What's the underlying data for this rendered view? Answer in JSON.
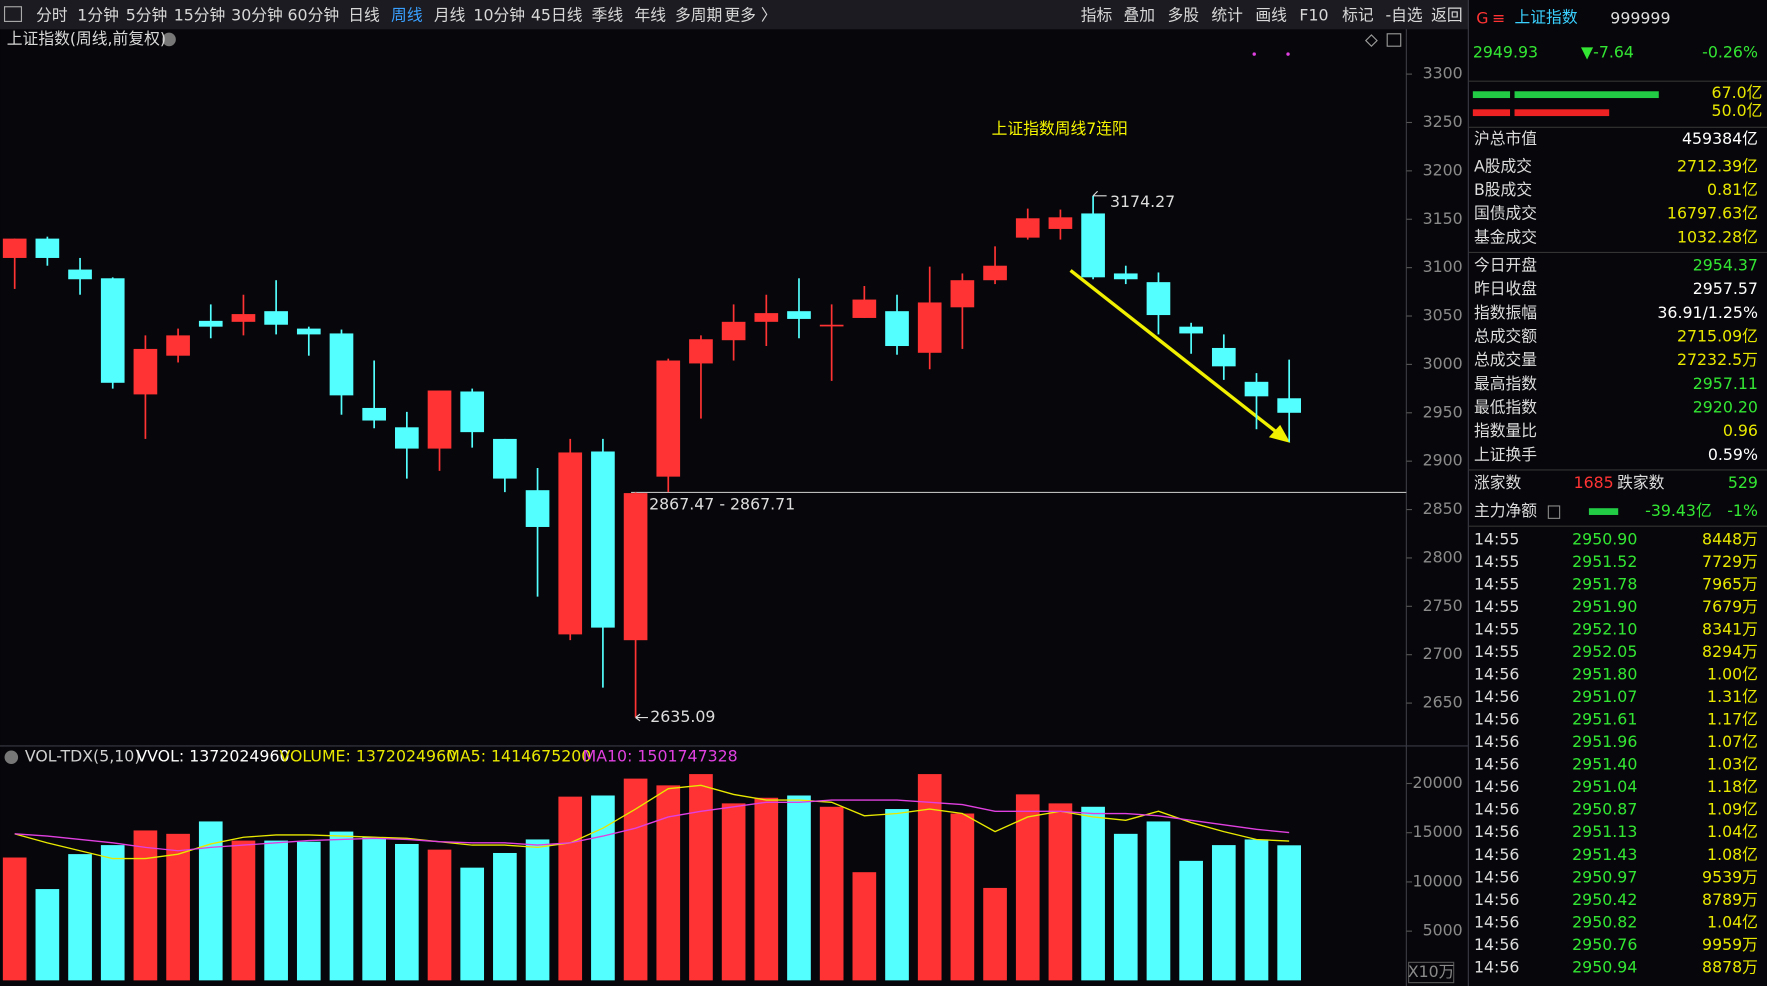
{
  "toolbar": {
    "left": [
      "分时",
      "1分钟",
      "5分钟",
      "15分钟",
      "30分钟",
      "60分钟",
      "日线",
      "周线",
      "月线",
      "10分钟",
      "45日线",
      "季线",
      "年线",
      "多周期",
      "更多 〉"
    ],
    "active": 7,
    "right": [
      "指标",
      "叠加",
      "多股",
      "统计",
      "画线",
      "F10",
      "标记",
      "-自选",
      "返回"
    ]
  },
  "chart_data": [
    {
      "type": "candlestick",
      "title": "上证指数(周线,前复权)",
      "annotation": "上证指数周线7连阳",
      "range_label": "2867.47 - 2867.71",
      "hline": 2867.71,
      "high_label_index": 33,
      "low_label_index": 19,
      "up_color": "#ff3333",
      "down_color": "#54ffff",
      "ylim": [
        2608,
        3330
      ],
      "yticks": [
        2650,
        2700,
        2750,
        2800,
        2850,
        2900,
        2950,
        3000,
        3050,
        3100,
        3150,
        3200,
        3250,
        3300
      ],
      "open": [
        3110,
        3130,
        3098,
        3089,
        2969,
        3009,
        3045,
        3044,
        3055,
        3037,
        3032,
        2955,
        2935,
        2913,
        2972,
        2923,
        2870,
        2721,
        2910,
        2715,
        2884,
        3001,
        3025,
        3044,
        3055,
        3040,
        3048,
        3055,
        3012,
        3059,
        3087,
        3131,
        3140,
        3156,
        3094,
        3085,
        3039,
        3017,
        2982,
        2965
      ],
      "high": [
        3130,
        3132,
        3110,
        3090,
        3030,
        3037,
        3062,
        3072,
        3087,
        3039,
        3036,
        3004,
        2951,
        2973,
        2975,
        2923,
        2893,
        2923,
        2923,
        2867.71,
        3006,
        3030,
        3062,
        3072,
        3089,
        3062,
        3081,
        3072,
        3101,
        3094,
        3122,
        3161,
        3160,
        3174.27,
        3102,
        3095,
        3043,
        3031,
        2991,
        3005
      ],
      "low": [
        3078,
        3102,
        3072,
        2975,
        2923,
        3002,
        3027,
        3030,
        3031,
        3009,
        2948,
        2934,
        2882,
        2890,
        2914,
        2868,
        2760,
        2715,
        2666,
        2635.09,
        2868,
        2944,
        3004,
        3019,
        3027,
        2983,
        3048,
        3010,
        2995,
        3016,
        3083,
        3129,
        3129,
        3088,
        3083,
        3031,
        3011,
        2984,
        2933,
        2920
      ],
      "close": [
        3130,
        3110,
        3088,
        2981,
        3016,
        3030,
        3039,
        3052,
        3041,
        3031,
        2968,
        2942,
        2913,
        2973,
        2930,
        2882,
        2832,
        2909,
        2728,
        2867,
        3004,
        3026,
        3044,
        3053,
        3047,
        3041,
        3067,
        3019,
        3064,
        3087,
        3102,
        3151,
        3152,
        3090,
        3088,
        3051,
        3032,
        2998,
        2967,
        2950
      ]
    },
    {
      "type": "bar",
      "header": [
        {
          "text": "VOL-TDX(5,10)",
          "color": "#d0d0d0"
        },
        {
          "text": "VVOL: 1372024960",
          "color": "#ffffff"
        },
        {
          "text": "VOLUME: 1372024960",
          "color": "#e8e800"
        },
        {
          "text": "MA5: 1414675200",
          "color": "#e8e800"
        },
        {
          "text": "MA10: 1501747328",
          "color": "#e040e0"
        }
      ],
      "unit_label": "X10万",
      "ylim": [
        0,
        21750
      ],
      "yticks": [
        5000,
        10000,
        15000,
        20000
      ],
      "series": [
        {
          "values": [
            12480,
            9275,
            12825,
            13740,
            15230,
            14885,
            16145,
            14200,
            14200,
            14085,
            15115,
            14540,
            13855,
            13280,
            11450,
            12940,
            14315,
            18665,
            18780,
            20495,
            19810,
            20955,
            17980,
            18550,
            18780,
            17635,
            10990,
            17405,
            20955,
            16950,
            9390,
            18895,
            17980,
            17635,
            14885,
            16145,
            12140,
            13740,
            14315,
            13720
          ]
        },
        {
          "color": "#e8e800",
          "values": [
            14885,
            13970,
            13170,
            12370,
            12370,
            12820,
            13860,
            14540,
            14770,
            14770,
            14660,
            14540,
            14430,
            14080,
            13740,
            13740,
            13510,
            13970,
            15460,
            17400,
            19470,
            19810,
            18890,
            18320,
            18320,
            18090,
            16720,
            16950,
            17400,
            16950,
            15110,
            16600,
            17180,
            16600,
            16260,
            17180,
            16030,
            15110,
            14310,
            14147
          ]
        },
        {
          "color": "#e040e0",
          "values": [
            14885,
            14656,
            14313,
            13969,
            13511,
            13168,
            13511,
            13740,
            13969,
            14198,
            14313,
            14427,
            14313,
            14084,
            13969,
            13969,
            13740,
            13969,
            14656,
            15458,
            16603,
            17175,
            17633,
            18091,
            18091,
            18320,
            18320,
            18320,
            18091,
            17862,
            17175,
            17175,
            17175,
            16946,
            16946,
            16717,
            16259,
            15801,
            15343,
            15017
          ]
        }
      ]
    }
  ],
  "panel": {
    "flag": "G",
    "menu": "≡",
    "name": "上证指数",
    "code": "999999",
    "price": "2949.93",
    "change": "▼-7.64",
    "pct": "-0.26%",
    "buy_label": "67.0亿",
    "sell_label": "50.0亿",
    "rows": [
      {
        "label": "沪总市值",
        "value": "459384亿",
        "color": "#ffffff"
      },
      {
        "label": "A股成交",
        "value": "2712.39亿",
        "color": "#e8e800"
      },
      {
        "label": "B股成交",
        "value": "0.81亿",
        "color": "#e8e800"
      },
      {
        "label": "国债成交",
        "value": "16797.63亿",
        "color": "#e8e800"
      },
      {
        "label": "基金成交",
        "value": "1032.28亿",
        "color": "#e8e800"
      },
      {
        "label": "今日开盘",
        "value": "2954.37",
        "color": "#33e633"
      },
      {
        "label": "昨日收盘",
        "value": "2957.57",
        "color": "#ffffff"
      },
      {
        "label": "指数振幅",
        "value": "36.91/1.25%",
        "color": "#ffffff"
      },
      {
        "label": "总成交额",
        "value": "2715.09亿",
        "color": "#e8e800"
      },
      {
        "label": "总成交量",
        "value": "27232.5万",
        "color": "#e8e800"
      },
      {
        "label": "最高指数",
        "value": "2957.11",
        "color": "#33e633"
      },
      {
        "label": "最低指数",
        "value": "2920.20",
        "color": "#33e633"
      },
      {
        "label": "指数量比",
        "value": "0.96",
        "color": "#e8e800"
      },
      {
        "label": "上证换手",
        "value": "0.59%",
        "color": "#ffffff"
      }
    ],
    "adv_label": "涨家数",
    "adv": "1685",
    "dec_label": "跌家数",
    "dec": "529",
    "flow_label": "主力净额",
    "flow": "-39.43亿",
    "flow_pct": "-1%",
    "ticks": [
      [
        "14:55",
        "2950.90",
        "8448万"
      ],
      [
        "14:55",
        "2951.52",
        "7729万"
      ],
      [
        "14:55",
        "2951.78",
        "7965万"
      ],
      [
        "14:55",
        "2951.90",
        "7679万"
      ],
      [
        "14:55",
        "2952.10",
        "8341万"
      ],
      [
        "14:55",
        "2952.05",
        "8294万"
      ],
      [
        "14:56",
        "2951.80",
        "1.00亿"
      ],
      [
        "14:56",
        "2951.07",
        "1.31亿"
      ],
      [
        "14:56",
        "2951.61",
        "1.17亿"
      ],
      [
        "14:56",
        "2951.96",
        "1.07亿"
      ],
      [
        "14:56",
        "2951.40",
        "1.03亿"
      ],
      [
        "14:56",
        "2951.04",
        "1.18亿"
      ],
      [
        "14:56",
        "2950.87",
        "1.09亿"
      ],
      [
        "14:56",
        "2951.13",
        "1.04亿"
      ],
      [
        "14:56",
        "2951.43",
        "1.08亿"
      ],
      [
        "14:56",
        "2950.97",
        "9539万"
      ],
      [
        "14:56",
        "2950.42",
        "8789万"
      ],
      [
        "14:56",
        "2950.82",
        "1.04亿"
      ],
      [
        "14:56",
        "2950.76",
        "9959万"
      ],
      [
        "14:56",
        "2950.94",
        "8878万"
      ]
    ]
  }
}
